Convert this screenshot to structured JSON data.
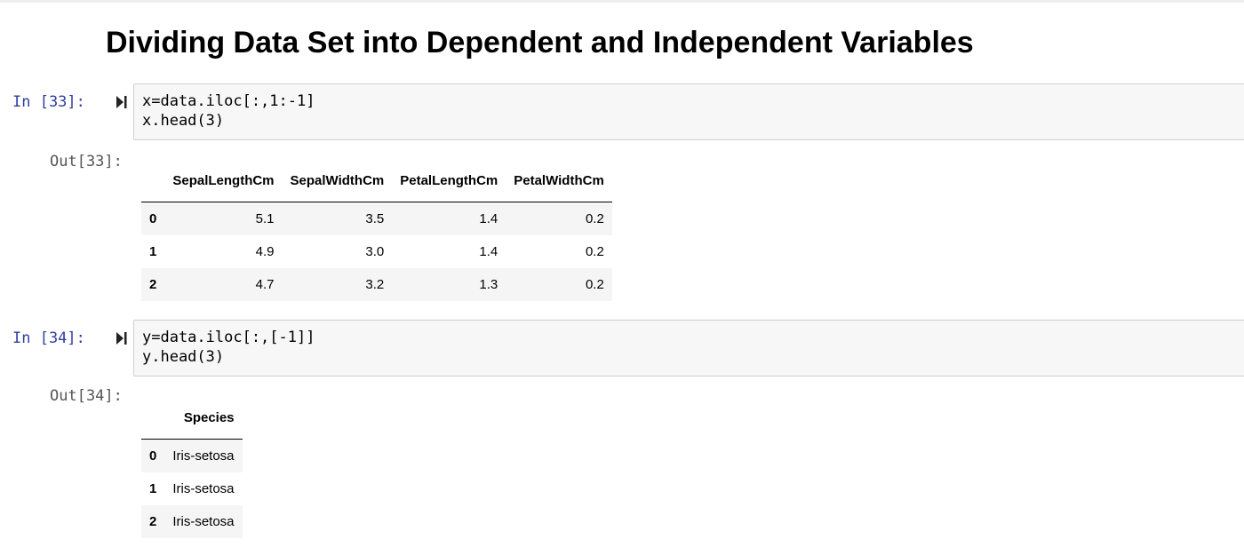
{
  "heading": "Dividing Data Set into Dependent and Independent Variables",
  "cells": [
    {
      "in_prompt": "In [33]:",
      "out_prompt": "Out[33]:",
      "code": [
        "x=data.iloc[:,1:-1]",
        "x.head(3)"
      ],
      "table": {
        "columns": [
          "",
          "SepalLengthCm",
          "SepalWidthCm",
          "PetalLengthCm",
          "PetalWidthCm"
        ],
        "rows": [
          [
            "0",
            "5.1",
            "3.5",
            "1.4",
            "0.2"
          ],
          [
            "1",
            "4.9",
            "3.0",
            "1.4",
            "0.2"
          ],
          [
            "2",
            "4.7",
            "3.2",
            "1.3",
            "0.2"
          ]
        ]
      }
    },
    {
      "in_prompt": "In [34]:",
      "out_prompt": "Out[34]:",
      "code": [
        "y=data.iloc[:,[-1]]",
        "y.head(3)"
      ],
      "table": {
        "columns": [
          "",
          "Species"
        ],
        "rows": [
          [
            "0",
            "Iris-setosa"
          ],
          [
            "1",
            "Iris-setosa"
          ],
          [
            "2",
            "Iris-setosa"
          ]
        ]
      }
    }
  ],
  "icons": {
    "run": "run-cell-icon"
  },
  "colors": {
    "input_prompt": "#303f9f",
    "output_prompt": "#555555",
    "input_background": "#f7f7f7",
    "input_border": "#cfcfcf",
    "row_stripe": "#f5f5f5"
  }
}
